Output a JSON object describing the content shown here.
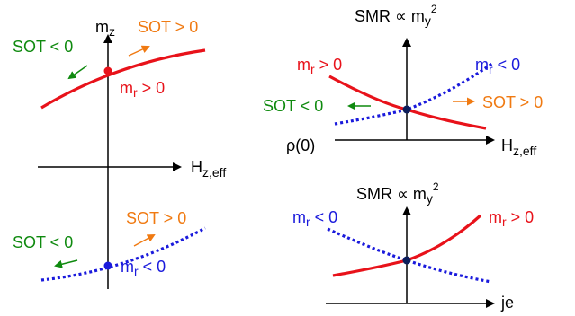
{
  "colors": {
    "red": "#e8121a",
    "blue": "#1a1adc",
    "green": "#0f8a0f",
    "orange": "#f07a12",
    "dot": "#0c1e5a",
    "axis": "#000000"
  },
  "left": {
    "y_axis": {
      "base": "m",
      "sub": "z"
    },
    "x_axis": {
      "base": "H",
      "sub": "z,eff"
    },
    "top_curve": {
      "sot_neg": "SOT < 0",
      "sot_pos": "SOT > 0",
      "label": {
        "base": "m",
        "sub": "r",
        "rest": " > 0"
      }
    },
    "bottom_curve": {
      "sot_neg": "SOT < 0",
      "sot_pos": "SOT > 0",
      "label": {
        "base": "m",
        "sub": "r",
        "rest": " < 0"
      }
    }
  },
  "right_top": {
    "title": {
      "main": "SMR ∝ m",
      "sub": "y",
      "sup": "2"
    },
    "y_origin_label": "ρ(0)",
    "x_axis": {
      "base": "H",
      "sub": "z,eff"
    },
    "red_label": {
      "base": "m",
      "sub": "r",
      "rest": " > 0"
    },
    "blue_label": {
      "base": "m",
      "sub": "r",
      "rest": " < 0"
    },
    "sot_neg": "SOT < 0",
    "sot_pos": "SOT > 0"
  },
  "right_bottom": {
    "title": {
      "main": "SMR ∝ m",
      "sub": "y",
      "sup": "2"
    },
    "x_axis": "je",
    "blue_label": {
      "base": "m",
      "sub": "r",
      "rest": " < 0"
    },
    "red_label": {
      "base": "m",
      "sub": "r",
      "rest": " > 0"
    }
  }
}
